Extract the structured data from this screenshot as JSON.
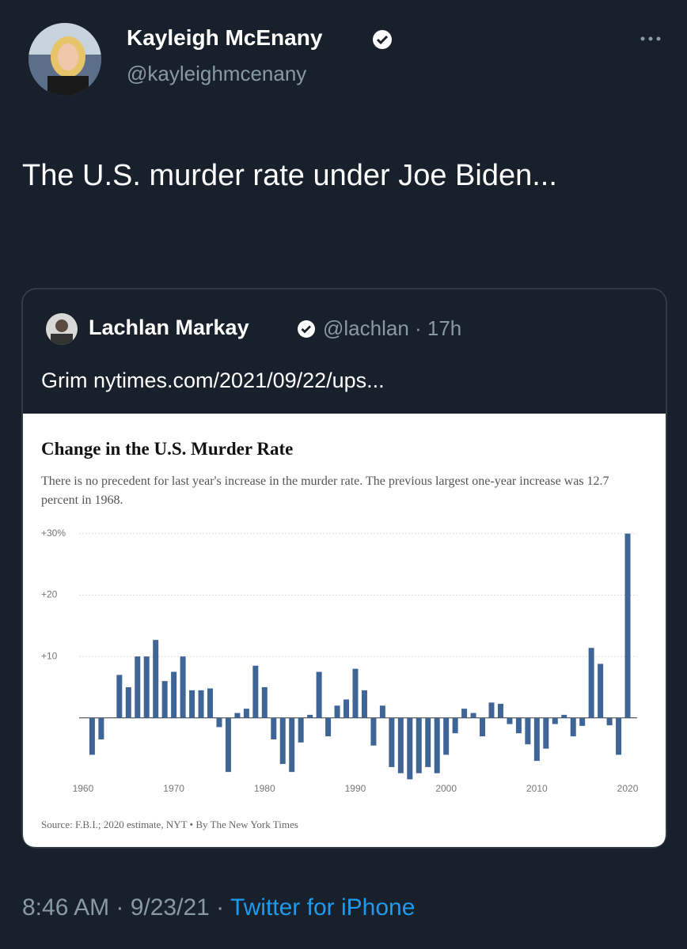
{
  "tweet": {
    "name": "Kayleigh McEnany",
    "handle": "@kayleighmcenany",
    "text": "The U.S. murder rate under Joe Biden...",
    "timestamp": "8:46 AM · 9/23/21 ·",
    "source": "Twitter for iPhone"
  },
  "quote": {
    "name": "Lachlan Markay",
    "meta": "@lachlan · 17h",
    "text": "Grim nytimes.com/2021/09/22/ups..."
  },
  "chart_data": {
    "type": "bar",
    "title": "Change in the U.S. Murder Rate",
    "subtitle": "There is no precedent for last year's increase in the murder rate. The previous largest one-year increase was 12.7 percent in 1968.",
    "source": "Source: F.B.I.; 2020 estimate, NYT • By The New York Times",
    "x": [
      1960,
      1961,
      1962,
      1963,
      1964,
      1965,
      1966,
      1967,
      1968,
      1969,
      1970,
      1971,
      1972,
      1973,
      1974,
      1975,
      1976,
      1977,
      1978,
      1979,
      1980,
      1981,
      1982,
      1983,
      1984,
      1985,
      1986,
      1987,
      1988,
      1989,
      1990,
      1991,
      1992,
      1993,
      1994,
      1995,
      1996,
      1997,
      1998,
      1999,
      2000,
      2001,
      2002,
      2003,
      2004,
      2005,
      2006,
      2007,
      2008,
      2009,
      2010,
      2011,
      2012,
      2013,
      2014,
      2015,
      2016,
      2017,
      2018,
      2019,
      2020
    ],
    "values": [
      0,
      -6,
      -3.5,
      0,
      7,
      5,
      10,
      10,
      12.7,
      6,
      7.5,
      10,
      4.5,
      4.5,
      4.8,
      -1.5,
      -8.8,
      0.8,
      1.5,
      8.5,
      5,
      -3.5,
      -7.5,
      -8.8,
      -4,
      0.5,
      7.5,
      -3,
      2,
      3,
      8,
      4.5,
      -4.5,
      2,
      -8,
      -9,
      -10,
      -9,
      -8,
      -9,
      -6,
      -2.5,
      1.5,
      0.8,
      -3,
      2.5,
      2.3,
      -1,
      -2.5,
      -4.3,
      -7,
      -5,
      -1,
      0.5,
      -3,
      -1.3,
      11.4,
      8.8,
      -1.2,
      -6,
      30
    ],
    "color": "#3f6596",
    "xlim": [
      1958,
      2021
    ],
    "xticks": [
      1960,
      1970,
      1980,
      1990,
      2000,
      2010,
      2020
    ],
    "ylim": [
      -12,
      31
    ],
    "yticks": [
      {
        "value": 10,
        "label": "+10"
      },
      {
        "value": 20,
        "label": "+20"
      },
      {
        "value": 30,
        "label": "+30%"
      }
    ],
    "grid": true
  }
}
